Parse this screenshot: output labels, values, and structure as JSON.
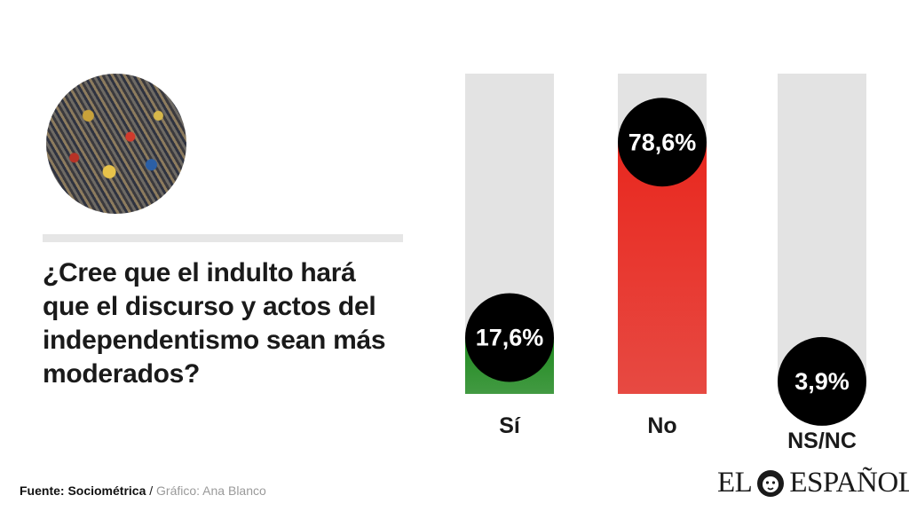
{
  "question": "¿Cree que el indulto hará\nque el discurso y actos  del\nindependentismo sean más\nmoderados?",
  "source_label": "Fuente: Sociométrica",
  "separator": "/",
  "graphic_credit": "Gráfico: Ana Blanco",
  "logo": {
    "left": "EL",
    "right": "ESPAÑOL",
    "icon": "lion-head-icon"
  },
  "photo": {
    "icon": "demonstration-crowd-photo"
  },
  "chart_data": {
    "type": "bar",
    "categories": [
      "Sí",
      "No",
      "NS/NC"
    ],
    "values": [
      17.6,
      78.6,
      3.9
    ],
    "value_labels": [
      "17,6%",
      "78,6%",
      "3,9%"
    ],
    "ylim": [
      0,
      100
    ],
    "colors": [
      "#1f8a1f",
      "#e8281f",
      "#dedede"
    ],
    "track_color": "#e3e3e3",
    "badge_color": "#000000",
    "grid": false,
    "title": "",
    "xlabel": "",
    "ylabel": ""
  }
}
